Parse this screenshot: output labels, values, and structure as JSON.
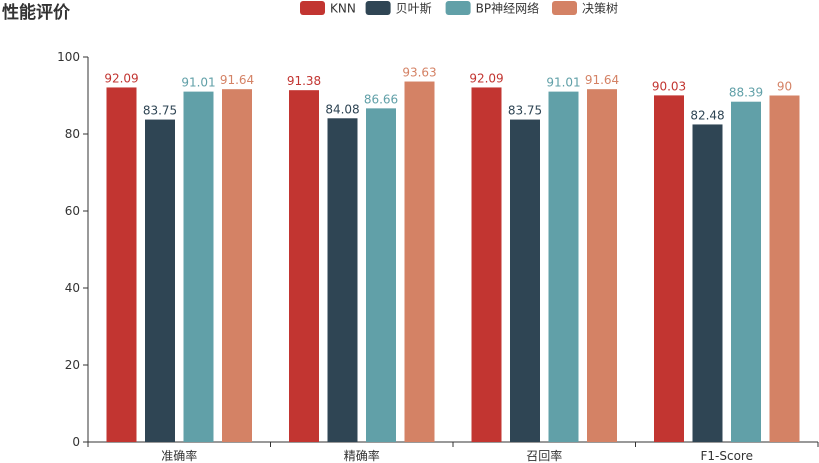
{
  "chart_data": {
    "type": "bar",
    "title": "性能评价",
    "categories": [
      "准确率",
      "精确率",
      "召回率",
      "F1-Score"
    ],
    "series": [
      {
        "name": "KNN",
        "color": "#c23531",
        "values": [
          92.09,
          91.38,
          92.09,
          90.03
        ]
      },
      {
        "name": "贝叶斯",
        "color": "#2f4554",
        "values": [
          83.75,
          84.08,
          83.75,
          82.48
        ]
      },
      {
        "name": "BP神经网络",
        "color": "#61a0a8",
        "values": [
          91.01,
          86.66,
          91.01,
          88.39
        ]
      },
      {
        "name": "决策树",
        "color": "#d48265",
        "values": [
          91.64,
          93.63,
          91.64,
          90
        ]
      }
    ],
    "ylim": [
      0,
      100
    ],
    "yticks": [
      0,
      20,
      40,
      60,
      80,
      100
    ],
    "xlabel": "",
    "ylabel": "",
    "legend_position": "top-center",
    "grid": false
  }
}
